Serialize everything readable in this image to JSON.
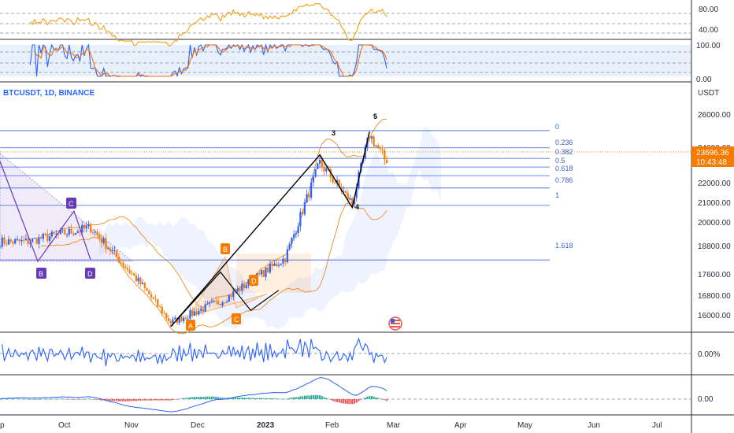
{
  "header": {
    "symbol_line": "BTCUSDT, 1D, BINANCE",
    "currency": "USDT"
  },
  "price_axis": {
    "ticks": [
      "26000.00",
      "24000.00",
      "22000.00",
      "21000.00",
      "20000.00",
      "18800.00",
      "17600.00",
      "16800.00",
      "16000.00"
    ],
    "last_price": "23696.36",
    "countdown": "10:43:48",
    "last_price_color": "#f57c00"
  },
  "rsi_axis": {
    "ticks": [
      "80.00",
      "40.00"
    ]
  },
  "stoch_axis": {
    "ticks": [
      "100.00",
      "0.00"
    ]
  },
  "osc_axis": {
    "ticks": [
      "0.00%"
    ]
  },
  "macd_axis": {
    "ticks": [
      "0.00"
    ]
  },
  "time_axis": {
    "labels": [
      "p",
      "Oct",
      "Nov",
      "Dec",
      "2023",
      "Feb",
      "Mar",
      "Apr",
      "May",
      "Jun",
      "Jul"
    ],
    "bold": "2023"
  },
  "fib_levels": [
    "0",
    "0.236",
    "0.382",
    "0.5",
    "0.618",
    "0.786",
    "1",
    "1.618"
  ],
  "waves": {
    "numeric": [
      "3",
      "4",
      "5"
    ],
    "purple": [
      "B",
      "C",
      "D"
    ],
    "orange": [
      "A",
      "B",
      "C",
      "D"
    ]
  },
  "colors": {
    "up": "#26a69a",
    "down": "#ef5350",
    "candle_blue": "#2962ff",
    "candle_orange": "#f57c00",
    "fib": "#3b5fd9",
    "purple": "#673ab7",
    "orange": "#f57c00",
    "rsi": "#f59e0b",
    "stoch_k": "#2962ff",
    "stoch_d": "#ff6d00"
  },
  "chart_data": {
    "type": "candlestick",
    "title": "BTCUSDT, 1D, BINANCE",
    "ylabel": "USDT",
    "ylim": [
      15400,
      26700
    ],
    "x_range": [
      "2022-09-03",
      "2023-07-20"
    ],
    "series": [
      {
        "name": "BTCUSDT",
        "close_path_monthly": [
          [
            "2022-09",
            19800
          ],
          [
            "2022-10",
            20500
          ],
          [
            "2022-11-08",
            17600
          ],
          [
            "2022-11-21",
            15800
          ],
          [
            "2022-12",
            16900
          ],
          [
            "2023-01-13",
            19000
          ],
          [
            "2023-01-29",
            23700
          ],
          [
            "2023-02-13",
            21700
          ],
          [
            "2023-02-21",
            25100
          ],
          [
            "2023-03-01",
            23696.36
          ]
        ]
      }
    ],
    "fibonacci": [
      {
        "level": "0",
        "price": 25300
      },
      {
        "level": "0.236",
        "price": 24450
      },
      {
        "level": "0.382",
        "price": 23930
      },
      {
        "level": "0.5",
        "price": 23500
      },
      {
        "level": "0.618",
        "price": 23070
      },
      {
        "level": "0.786",
        "price": 22460
      },
      {
        "level": "1",
        "price": 21600
      },
      {
        "level": "1.618",
        "price": 18900
      }
    ],
    "elliott_waves": [
      {
        "label": "A",
        "date": "2022-11-21",
        "price": 15600
      },
      {
        "label": "B",
        "date": "2022-12-14",
        "price": 18300
      },
      {
        "label": "C",
        "date": "2022-12-28",
        "price": 16400
      },
      {
        "label": "D",
        "date": "2023-01-10",
        "price": 17400
      },
      {
        "label": "3",
        "date": "2023-01-29",
        "price": 24100
      },
      {
        "label": "4",
        "date": "2023-02-13",
        "price": 21500
      },
      {
        "label": "5",
        "date": "2023-02-21",
        "price": 25250
      }
    ],
    "last_price": 23696.36,
    "grid": false
  }
}
